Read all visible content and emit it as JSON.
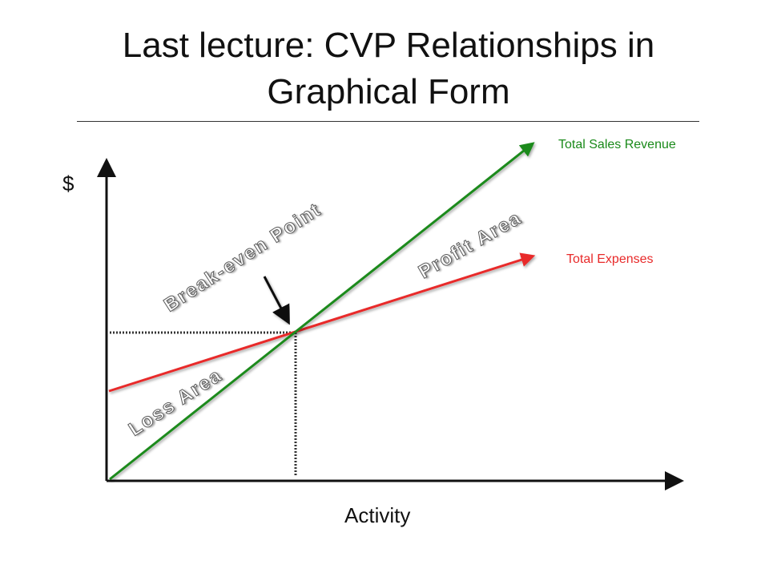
{
  "slide": {
    "title": "Last lecture: CVP Relationships in Graphical Form"
  },
  "axes": {
    "y_label": "$",
    "x_label": "Activity"
  },
  "lines": {
    "revenue": {
      "label": "Total Sales Revenue",
      "color": "#1a8a1a"
    },
    "expenses": {
      "label": "Total Expenses",
      "color": "#e82a2a"
    }
  },
  "regions": {
    "breakeven": "Break-even Point",
    "profit": "Profit Area",
    "loss": "Loss Area"
  }
}
